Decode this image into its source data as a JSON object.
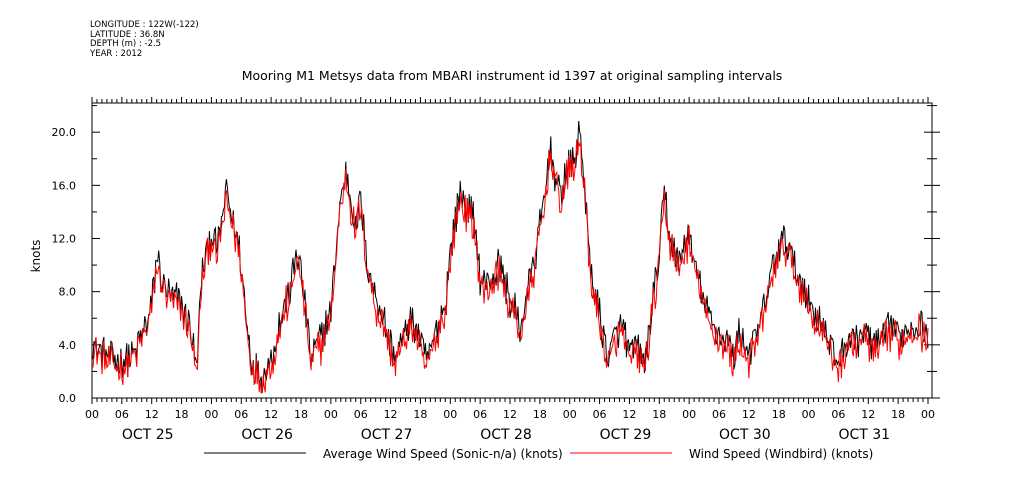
{
  "header": {
    "lines": [
      "LONGITUDE : 122W(-122)",
      "LATITUDE : 36.8N",
      "DEPTH (m) : -2.5",
      "YEAR : 2012"
    ]
  },
  "chart_data": {
    "type": "line",
    "title": "Mooring M1 Metsys data from MBARI instrument id 1397 at original sampling intervals",
    "xlabel": "",
    "ylabel": "knots",
    "ylim": [
      0,
      22
    ],
    "xlim": [
      0,
      168
    ],
    "x_unit": "hours since Oct 25 00:00",
    "y_ticks": [
      "0.0",
      "4.0",
      "8.0",
      "12.0",
      "16.0",
      "20.0"
    ],
    "x_tick_labels": [
      "00",
      "06",
      "12",
      "18",
      "00",
      "06",
      "12",
      "18",
      "00",
      "06",
      "12",
      "18",
      "00",
      "06",
      "12",
      "18",
      "00",
      "06",
      "12",
      "18",
      "00",
      "06",
      "12",
      "18",
      "00",
      "06",
      "12",
      "18",
      "00"
    ],
    "day_labels": [
      "OCT 25",
      "OCT 26",
      "OCT 27",
      "OCT 28",
      "OCT 29",
      "OCT 30",
      "OCT 31"
    ],
    "series": [
      {
        "name": "Average Wind Speed (Sonic-n/a) (knots)",
        "color": "#000000",
        "anchors": [
          [
            0,
            4.0
          ],
          [
            3,
            3.2
          ],
          [
            6,
            2.6
          ],
          [
            9,
            3.6
          ],
          [
            12,
            6.8
          ],
          [
            13,
            10.5
          ],
          [
            15,
            8.0
          ],
          [
            18,
            7.0
          ],
          [
            20,
            5.0
          ],
          [
            21,
            2.0
          ],
          [
            22,
            9.0
          ],
          [
            24,
            12.5
          ],
          [
            25,
            11.0
          ],
          [
            26,
            13.0
          ],
          [
            27,
            15.5
          ],
          [
            29,
            12.5
          ],
          [
            30,
            10.0
          ],
          [
            31,
            6.0
          ],
          [
            32,
            3.0
          ],
          [
            34,
            1.5
          ],
          [
            36,
            3.0
          ],
          [
            37,
            4.5
          ],
          [
            39,
            7.5
          ],
          [
            40,
            8.2
          ],
          [
            41,
            11.0
          ],
          [
            42,
            9.5
          ],
          [
            44,
            3.0
          ],
          [
            46,
            4.5
          ],
          [
            48,
            6.5
          ],
          [
            49,
            11.0
          ],
          [
            50,
            15.0
          ],
          [
            51,
            17.2
          ],
          [
            52,
            15.0
          ],
          [
            53,
            13.0
          ],
          [
            54,
            15.0
          ],
          [
            55,
            11.0
          ],
          [
            56,
            9.0
          ],
          [
            57,
            7.5
          ],
          [
            58,
            6.5
          ],
          [
            59,
            5.5
          ],
          [
            60,
            4.0
          ],
          [
            61,
            3.0
          ],
          [
            62,
            4.0
          ],
          [
            63,
            5.0
          ],
          [
            64,
            6.0
          ],
          [
            65,
            5.5
          ],
          [
            66,
            4.0
          ],
          [
            67,
            3.0
          ],
          [
            68,
            3.5
          ],
          [
            69,
            5.0
          ],
          [
            70,
            6.0
          ],
          [
            71,
            7.0
          ],
          [
            72,
            11.0
          ],
          [
            73,
            13.5
          ],
          [
            74,
            15.5
          ],
          [
            75,
            14.5
          ],
          [
            76,
            14.0
          ],
          [
            77,
            13.0
          ],
          [
            78,
            9.0
          ],
          [
            79,
            8.5
          ],
          [
            80,
            9.0
          ],
          [
            81,
            9.5
          ],
          [
            82,
            10.0
          ],
          [
            83,
            8.5
          ],
          [
            84,
            7.5
          ],
          [
            85,
            6.5
          ],
          [
            86,
            5.0
          ],
          [
            87,
            7.0
          ],
          [
            88,
            9.0
          ],
          [
            89,
            10.5
          ],
          [
            90,
            13.0
          ],
          [
            91,
            15.0
          ],
          [
            92,
            19.0
          ],
          [
            93,
            17.0
          ],
          [
            94,
            15.0
          ],
          [
            95,
            16.5
          ],
          [
            96,
            17.5
          ],
          [
            97,
            18.0
          ],
          [
            98,
            20.0
          ],
          [
            99,
            16.0
          ],
          [
            100,
            10.0
          ],
          [
            101,
            8.0
          ],
          [
            102,
            6.5
          ],
          [
            103,
            4.0
          ],
          [
            104,
            3.0
          ],
          [
            105,
            4.5
          ],
          [
            106,
            5.5
          ],
          [
            107,
            5.0
          ],
          [
            108,
            3.0
          ],
          [
            109,
            4.0
          ],
          [
            110,
            3.5
          ],
          [
            111,
            2.5
          ],
          [
            112,
            5.0
          ],
          [
            113,
            8.0
          ],
          [
            114,
            10.5
          ],
          [
            115,
            15.5
          ],
          [
            116,
            12.5
          ],
          [
            117,
            11.0
          ],
          [
            118,
            10.0
          ],
          [
            119,
            11.5
          ],
          [
            120,
            12.5
          ],
          [
            121,
            10.0
          ],
          [
            122,
            9.0
          ],
          [
            123,
            7.0
          ],
          [
            124,
            6.0
          ],
          [
            125,
            5.5
          ],
          [
            126,
            5.0
          ],
          [
            127,
            4.5
          ],
          [
            128,
            4.0
          ],
          [
            129,
            3.0
          ],
          [
            130,
            5.0
          ],
          [
            131,
            4.0
          ],
          [
            132,
            3.5
          ],
          [
            133,
            4.0
          ],
          [
            134,
            5.0
          ],
          [
            135,
            7.0
          ],
          [
            136,
            8.0
          ],
          [
            137,
            10.5
          ],
          [
            138,
            11.0
          ],
          [
            139,
            12.0
          ],
          [
            140,
            11.5
          ],
          [
            141,
            10.0
          ],
          [
            142,
            9.0
          ],
          [
            143,
            8.5
          ],
          [
            144,
            7.0
          ],
          [
            145,
            6.5
          ],
          [
            146,
            6.0
          ],
          [
            147,
            5.5
          ],
          [
            148,
            4.0
          ],
          [
            149,
            3.5
          ],
          [
            150,
            3.0
          ],
          [
            151,
            3.5
          ],
          [
            152,
            4.5
          ],
          [
            153,
            4.5
          ],
          [
            154,
            4.5
          ],
          [
            155,
            5.0
          ],
          [
            156,
            4.5
          ],
          [
            157,
            4.0
          ],
          [
            158,
            4.0
          ],
          [
            159,
            4.5
          ],
          [
            160,
            5.0
          ],
          [
            161,
            5.5
          ],
          [
            162,
            4.5
          ],
          [
            163,
            5.0
          ],
          [
            164,
            5.5
          ],
          [
            165,
            5.5
          ],
          [
            166,
            6.0
          ],
          [
            167,
            5.0
          ],
          [
            168,
            5.0
          ]
        ]
      },
      {
        "name": "Wind Speed (Windbird) (knots)",
        "color": "#ff0000",
        "anchors": [
          [
            0,
            3.5
          ],
          [
            3,
            2.7
          ],
          [
            6,
            2.2
          ],
          [
            9,
            3.2
          ],
          [
            12,
            6.3
          ],
          [
            13,
            10.0
          ],
          [
            15,
            7.5
          ],
          [
            18,
            6.5
          ],
          [
            20,
            4.5
          ],
          [
            21,
            1.5
          ],
          [
            22,
            8.5
          ],
          [
            24,
            12.0
          ],
          [
            25,
            10.5
          ],
          [
            26,
            12.5
          ],
          [
            27,
            14.8
          ],
          [
            29,
            12.0
          ],
          [
            30,
            9.5
          ],
          [
            31,
            5.5
          ],
          [
            32,
            2.5
          ],
          [
            34,
            1.0
          ],
          [
            36,
            2.5
          ],
          [
            37,
            4.0
          ],
          [
            39,
            7.0
          ],
          [
            40,
            7.7
          ],
          [
            41,
            10.5
          ],
          [
            42,
            9.0
          ],
          [
            44,
            2.5
          ],
          [
            46,
            4.0
          ],
          [
            48,
            6.0
          ],
          [
            49,
            10.5
          ],
          [
            50,
            14.5
          ],
          [
            51,
            16.5
          ],
          [
            52,
            14.5
          ],
          [
            53,
            12.5
          ],
          [
            54,
            14.5
          ],
          [
            55,
            10.5
          ],
          [
            56,
            8.5
          ],
          [
            57,
            7.0
          ],
          [
            58,
            6.0
          ],
          [
            59,
            5.0
          ],
          [
            60,
            3.5
          ],
          [
            61,
            2.5
          ],
          [
            62,
            3.5
          ],
          [
            63,
            4.5
          ],
          [
            64,
            5.5
          ],
          [
            65,
            5.0
          ],
          [
            66,
            3.5
          ],
          [
            67,
            2.5
          ],
          [
            68,
            3.0
          ],
          [
            69,
            4.5
          ],
          [
            70,
            5.5
          ],
          [
            71,
            6.5
          ],
          [
            72,
            10.5
          ],
          [
            73,
            13.0
          ],
          [
            74,
            15.0
          ],
          [
            75,
            14.0
          ],
          [
            76,
            13.5
          ],
          [
            77,
            12.5
          ],
          [
            78,
            8.5
          ],
          [
            79,
            8.0
          ],
          [
            80,
            8.5
          ],
          [
            81,
            9.0
          ],
          [
            82,
            9.5
          ],
          [
            83,
            8.0
          ],
          [
            84,
            7.0
          ],
          [
            85,
            6.0
          ],
          [
            86,
            4.5
          ],
          [
            87,
            6.5
          ],
          [
            88,
            8.5
          ],
          [
            89,
            10.0
          ],
          [
            90,
            12.5
          ],
          [
            91,
            14.5
          ],
          [
            92,
            18.5
          ],
          [
            93,
            16.5
          ],
          [
            94,
            14.5
          ],
          [
            95,
            16.0
          ],
          [
            96,
            17.0
          ],
          [
            97,
            17.5
          ],
          [
            98,
            19.5
          ],
          [
            99,
            15.5
          ],
          [
            100,
            9.5
          ],
          [
            101,
            7.5
          ],
          [
            102,
            6.0
          ],
          [
            103,
            3.5
          ],
          [
            104,
            2.5
          ],
          [
            105,
            4.0
          ],
          [
            106,
            5.0
          ],
          [
            107,
            4.5
          ],
          [
            108,
            2.5
          ],
          [
            109,
            3.5
          ],
          [
            110,
            3.0
          ],
          [
            111,
            2.0
          ],
          [
            112,
            4.5
          ],
          [
            113,
            7.5
          ],
          [
            114,
            10.0
          ],
          [
            115,
            15.0
          ],
          [
            116,
            12.0
          ],
          [
            117,
            10.5
          ],
          [
            118,
            9.5
          ],
          [
            119,
            11.0
          ],
          [
            120,
            12.0
          ],
          [
            121,
            9.5
          ],
          [
            122,
            8.5
          ],
          [
            123,
            6.5
          ],
          [
            124,
            5.5
          ],
          [
            125,
            5.0
          ],
          [
            126,
            4.5
          ],
          [
            127,
            4.0
          ],
          [
            128,
            3.5
          ],
          [
            129,
            2.5
          ],
          [
            130,
            4.5
          ],
          [
            131,
            3.5
          ],
          [
            132,
            3.0
          ],
          [
            133,
            3.5
          ],
          [
            134,
            4.5
          ],
          [
            135,
            6.5
          ],
          [
            136,
            7.5
          ],
          [
            137,
            10.0
          ],
          [
            138,
            10.5
          ],
          [
            139,
            11.5
          ],
          [
            140,
            11.0
          ],
          [
            141,
            9.5
          ],
          [
            142,
            8.5
          ],
          [
            143,
            8.0
          ],
          [
            144,
            6.5
          ],
          [
            145,
            6.0
          ],
          [
            146,
            5.5
          ],
          [
            147,
            5.0
          ],
          [
            148,
            3.5
          ],
          [
            149,
            3.0
          ],
          [
            150,
            2.5
          ],
          [
            151,
            3.0
          ],
          [
            152,
            4.0
          ],
          [
            153,
            4.0
          ],
          [
            154,
            4.0
          ],
          [
            155,
            4.5
          ],
          [
            156,
            4.0
          ],
          [
            157,
            3.5
          ],
          [
            158,
            3.5
          ],
          [
            159,
            4.0
          ],
          [
            160,
            4.5
          ],
          [
            161,
            5.0
          ],
          [
            162,
            4.0
          ],
          [
            163,
            4.5
          ],
          [
            164,
            5.0
          ],
          [
            165,
            5.0
          ],
          [
            166,
            5.5
          ],
          [
            167,
            4.5
          ],
          [
            168,
            4.5
          ]
        ]
      }
    ],
    "grid": false,
    "legend": "bottom"
  }
}
